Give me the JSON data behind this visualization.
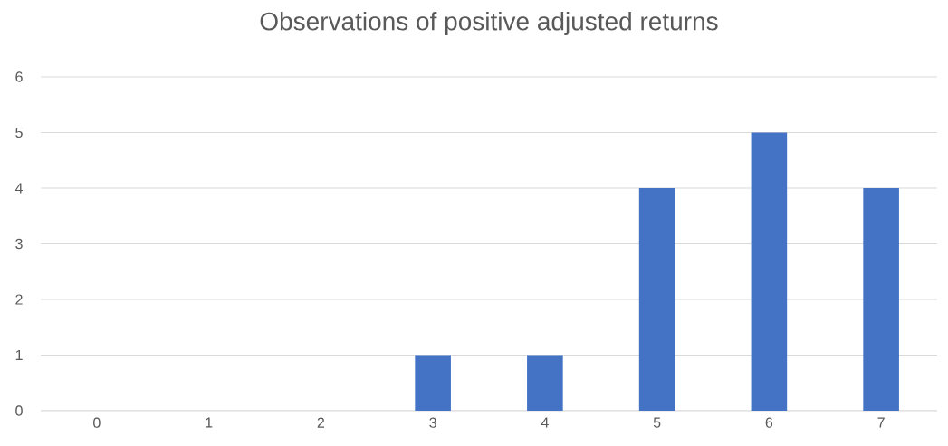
{
  "chart_data": {
    "type": "bar",
    "title": "Observations of positive adjusted returns",
    "categories": [
      "0",
      "1",
      "2",
      "3",
      "4",
      "5",
      "6",
      "7"
    ],
    "values": [
      0,
      0,
      0,
      1,
      1,
      4,
      5,
      4
    ],
    "color": "#4472c4",
    "ylim": [
      0,
      6
    ],
    "yticks": [
      0,
      1,
      2,
      3,
      4,
      5,
      6
    ],
    "grid": "y"
  }
}
